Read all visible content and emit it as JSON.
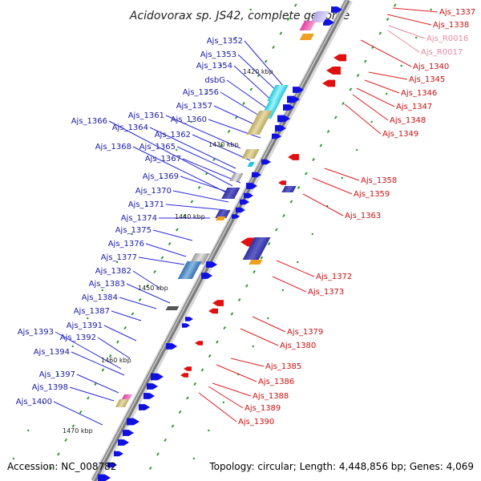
{
  "title": "Acidovorax sp. JS42, complete genome",
  "accession": "Accession: NC_008782",
  "topology": "Topology: circular; Length: 4,448,856 bp; Genes: 4,069",
  "colors": {
    "backbone": "#888888",
    "forward_gene": "#1010e0",
    "reverse_gene": "#e01010",
    "left_label": "#1a1aa8",
    "right_label": "#cc1111",
    "rna_label": "#e88aa0"
  },
  "kbp_markers": [
    "1420 kbp",
    "1430 kbp",
    "1440 kbp",
    "1450 kbp",
    "1460 kbp",
    "1470 kbp"
  ],
  "left_labels": [
    "Ajs_1352",
    "Ajs_1353",
    "Ajs_1354",
    "dsbG",
    "Ajs_1356",
    "Ajs_1357",
    "Ajs_1361",
    "Ajs_1360",
    "Ajs_1366",
    "Ajs_1364",
    "Ajs_1362",
    "Ajs_1368",
    "Ajs_1365",
    "Ajs_1367",
    "Ajs_1369",
    "Ajs_1370",
    "Ajs_1371",
    "Ajs_1374",
    "Ajs_1375",
    "Ajs_1376",
    "Ajs_1377",
    "Ajs_1382",
    "Ajs_1383",
    "Ajs_1384",
    "Ajs_1387",
    "Ajs_1391",
    "Ajs_1393",
    "Ajs_1392",
    "Ajs_1394",
    "Ajs_1397",
    "Ajs_1398",
    "Ajs_1400"
  ],
  "right_labels": [
    "Ajs_1337",
    "Ajs_1338",
    "Ajs_R0016",
    "Ajs_R0017",
    "Ajs_1340",
    "Ajs_1345",
    "Ajs_1346",
    "Ajs_1347",
    "Ajs_1348",
    "Ajs_1349",
    "Ajs_1358",
    "Ajs_1359",
    "Ajs_1363",
    "Ajs_1372",
    "Ajs_1373",
    "Ajs_1379",
    "Ajs_1380",
    "Ajs_1385",
    "Ajs_1386",
    "Ajs_1388",
    "Ajs_1389",
    "Ajs_1390"
  ]
}
